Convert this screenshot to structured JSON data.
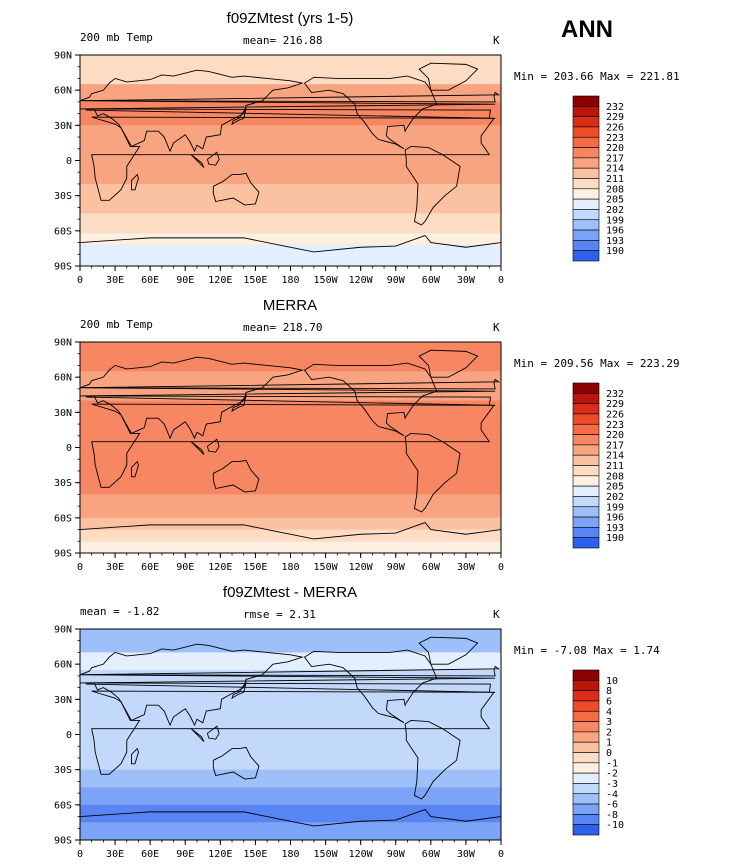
{
  "season": "ANN",
  "palettes": {
    "temp": [
      "#00008f",
      "#0a1fb4",
      "#1441d9",
      "#2e60ee",
      "#5985f4",
      "#7ba3f7",
      "#9dbffa",
      "#c2d9fc",
      "#e3eefe",
      "#fdf0e2",
      "#fddcc4",
      "#fbc2a2",
      "#f9a481",
      "#f78762",
      "#f46b45",
      "#ee4b2b",
      "#db2d18",
      "#b9150b",
      "#8b0000"
    ],
    "diff": [
      "#00008f",
      "#0a1fb4",
      "#1441d9",
      "#2e60ee",
      "#5985f4",
      "#7ba3f7",
      "#9dbffa",
      "#c2d9fc",
      "#e3eefe",
      "#fdf0e2",
      "#fddcc4",
      "#fbc2a2",
      "#f9a481",
      "#f78762",
      "#f46b45",
      "#ee4b2b",
      "#db2d18",
      "#b9150b",
      "#8b0000"
    ]
  },
  "chart_data": [
    {
      "type": "heatmap",
      "title": "f09ZMtest (yrs 1-5)",
      "left_label": "200 mb Temp",
      "center_label": "mean= 216.88",
      "units": "K",
      "min_max": "Min = 203.66 Max = 221.81",
      "x_ticks": [
        "0",
        "30E",
        "60E",
        "90E",
        "120E",
        "150E",
        "180",
        "150W",
        "120W",
        "90W",
        "60W",
        "30W",
        "0"
      ],
      "y_ticks": [
        "90N",
        "60N",
        "30N",
        "0",
        "30S",
        "60S",
        "90S"
      ],
      "levels": [
        "232",
        "229",
        "226",
        "223",
        "220",
        "217",
        "214",
        "211",
        "208",
        "205",
        "202",
        "199",
        "196",
        "193",
        "190"
      ],
      "palette": "temp",
      "background_band_index": 12
    },
    {
      "type": "heatmap",
      "title": "MERRA",
      "left_label": "200 mb Temp",
      "center_label": "mean= 218.70",
      "units": "K",
      "min_max": "Min = 209.56 Max = 223.29",
      "x_ticks": [
        "0",
        "30E",
        "60E",
        "90E",
        "120E",
        "150E",
        "180",
        "150W",
        "120W",
        "90W",
        "60W",
        "30W",
        "0"
      ],
      "y_ticks": [
        "90N",
        "60N",
        "30N",
        "0",
        "30S",
        "60S",
        "90S"
      ],
      "levels": [
        "232",
        "229",
        "226",
        "223",
        "220",
        "217",
        "214",
        "211",
        "208",
        "205",
        "202",
        "199",
        "196",
        "193",
        "190"
      ],
      "palette": "temp",
      "background_band_index": 13
    },
    {
      "type": "heatmap",
      "title": "f09ZMtest - MERRA",
      "left_label": "mean =   -1.82",
      "center_label": "rmse =    2.31",
      "units": "K",
      "min_max": "Min =   -7.08 Max =    1.74",
      "x_ticks": [
        "0",
        "30E",
        "60E",
        "90E",
        "120E",
        "150E",
        "180",
        "150W",
        "120W",
        "90W",
        "60W",
        "30W",
        "0"
      ],
      "y_ticks": [
        "90N",
        "60N",
        "30N",
        "0",
        "30S",
        "60S",
        "90S"
      ],
      "levels": [
        "10",
        "8",
        "6",
        "4",
        "3",
        "2",
        "1",
        "0",
        "-1",
        "-2",
        "-3",
        "-4",
        "-6",
        "-8",
        "-10"
      ],
      "palette": "diff",
      "background_band_index": 7
    }
  ]
}
